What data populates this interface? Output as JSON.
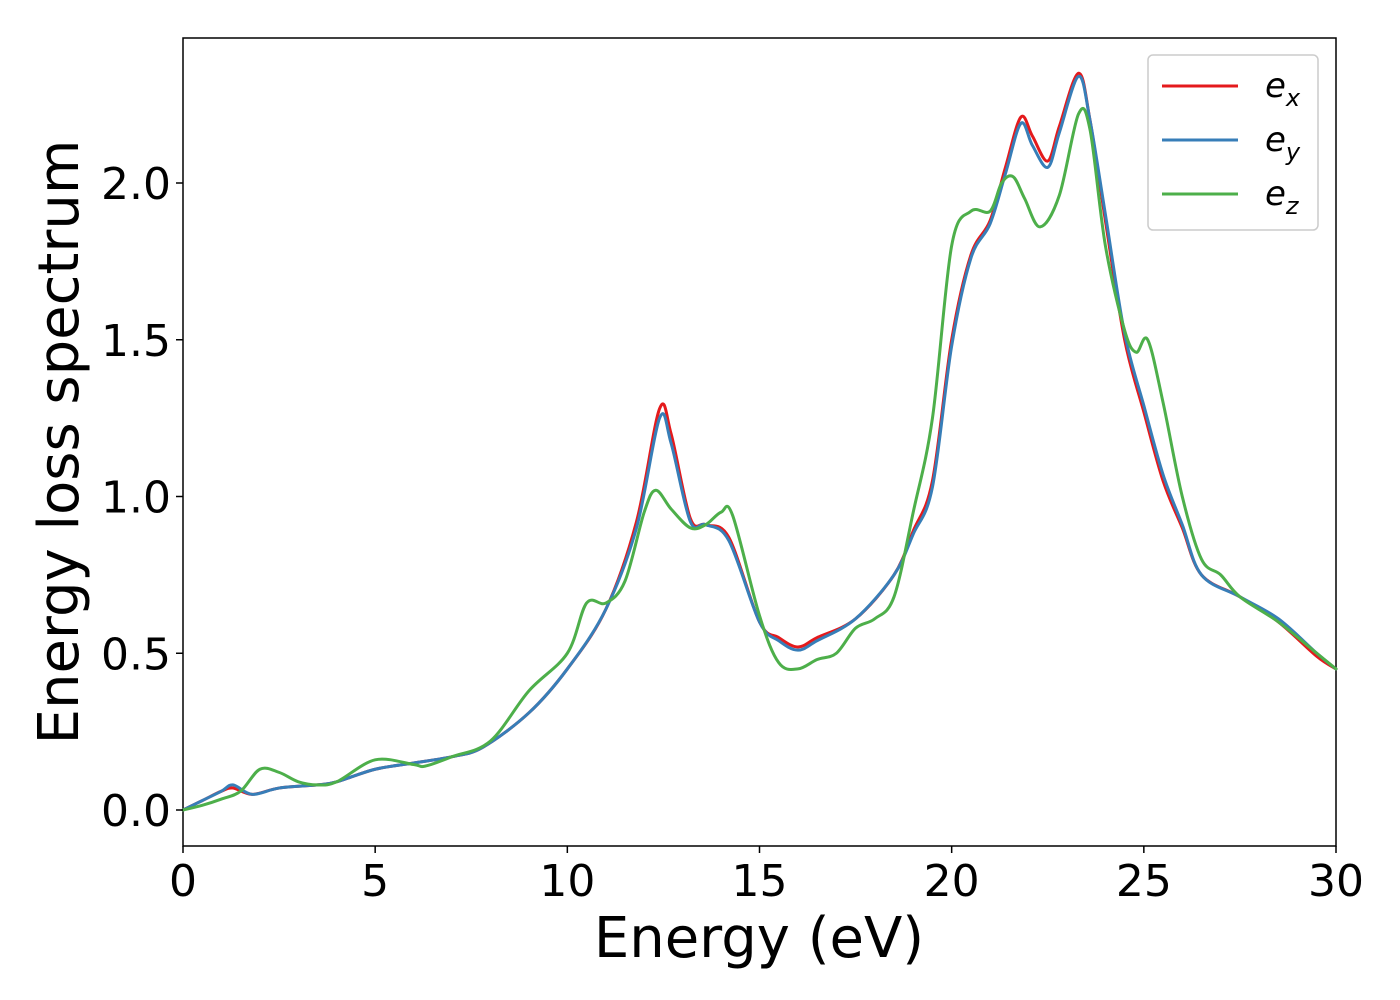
{
  "chart_data": {
    "type": "line",
    "title": "",
    "xlabel": "Energy (eV)",
    "ylabel": "Energy loss spectrum",
    "xlim": [
      0,
      30
    ],
    "ylim": [
      -0.12,
      2.47
    ],
    "xticks": [
      0,
      5,
      10,
      15,
      20,
      25,
      30
    ],
    "xtick_labels": [
      "0",
      "5",
      "10",
      "15",
      "20",
      "25",
      "30"
    ],
    "yticks": [
      0.0,
      0.5,
      1.0,
      1.5,
      2.0
    ],
    "ytick_labels": [
      "0.0",
      "0.5",
      "1.0",
      "1.5",
      "2.0"
    ],
    "grid": false,
    "legend_position": "top-right",
    "series": [
      {
        "name": "e_x",
        "legend_base": "e",
        "legend_sub": "x",
        "color": "#e41a1c",
        "x": [
          0,
          0.5,
          1.0,
          1.3,
          1.8,
          2.5,
          3.5,
          4.0,
          5.0,
          6.0,
          7.0,
          7.8,
          9.0,
          10.0,
          11.0,
          11.8,
          12.4,
          12.7,
          13.2,
          13.6,
          14.2,
          15.0,
          15.5,
          16.0,
          16.5,
          17.5,
          18.5,
          19.0,
          19.5,
          20.0,
          20.5,
          21.0,
          21.4,
          21.8,
          22.1,
          22.5,
          22.8,
          23.3,
          23.6,
          24.0,
          24.5,
          25.0,
          25.5,
          26.0,
          26.5,
          27.5,
          28.5,
          29.5,
          30.0
        ],
        "y": [
          0.0,
          0.03,
          0.06,
          0.07,
          0.05,
          0.07,
          0.08,
          0.09,
          0.13,
          0.15,
          0.17,
          0.2,
          0.31,
          0.45,
          0.64,
          0.92,
          1.28,
          1.2,
          0.93,
          0.91,
          0.87,
          0.6,
          0.55,
          0.52,
          0.55,
          0.61,
          0.75,
          0.89,
          1.05,
          1.5,
          1.77,
          1.88,
          2.05,
          2.21,
          2.15,
          2.07,
          2.18,
          2.35,
          2.2,
          1.88,
          1.5,
          1.27,
          1.05,
          0.9,
          0.75,
          0.68,
          0.6,
          0.49,
          0.45
        ]
      },
      {
        "name": "e_y",
        "legend_base": "e",
        "legend_sub": "y",
        "color": "#377eb8",
        "x": [
          0,
          0.5,
          1.0,
          1.3,
          1.8,
          2.5,
          3.5,
          4.0,
          5.0,
          6.0,
          7.0,
          7.8,
          9.0,
          10.0,
          11.0,
          11.8,
          12.4,
          12.7,
          13.2,
          13.6,
          14.2,
          15.0,
          15.5,
          16.0,
          16.5,
          17.5,
          18.5,
          19.0,
          19.5,
          20.0,
          20.5,
          21.0,
          21.4,
          21.8,
          22.1,
          22.5,
          22.8,
          23.3,
          23.6,
          24.0,
          24.5,
          25.0,
          25.5,
          26.0,
          26.5,
          27.5,
          28.5,
          29.5,
          30.0
        ],
        "y": [
          0.0,
          0.03,
          0.06,
          0.08,
          0.05,
          0.07,
          0.08,
          0.09,
          0.13,
          0.15,
          0.17,
          0.2,
          0.31,
          0.45,
          0.64,
          0.9,
          1.25,
          1.17,
          0.92,
          0.91,
          0.86,
          0.6,
          0.54,
          0.51,
          0.54,
          0.61,
          0.75,
          0.88,
          1.03,
          1.48,
          1.76,
          1.87,
          2.03,
          2.19,
          2.12,
          2.05,
          2.16,
          2.34,
          2.2,
          1.9,
          1.52,
          1.29,
          1.07,
          0.91,
          0.75,
          0.68,
          0.61,
          0.5,
          0.45
        ]
      },
      {
        "name": "e_z",
        "legend_base": "e",
        "legend_sub": "z",
        "color": "#4daf4a",
        "x": [
          0,
          0.5,
          1.0,
          1.5,
          2.0,
          2.5,
          3.0,
          3.5,
          4.0,
          5.0,
          6.0,
          6.3,
          7.0,
          8.0,
          9.0,
          10.0,
          10.5,
          11.0,
          11.5,
          12.0,
          12.3,
          12.7,
          13.2,
          13.6,
          14.0,
          14.3,
          15.0,
          15.5,
          16.0,
          16.5,
          17.0,
          17.5,
          18.0,
          18.5,
          19.0,
          19.5,
          20.0,
          20.5,
          21.0,
          21.3,
          21.6,
          21.9,
          22.3,
          22.8,
          23.3,
          23.6,
          24.0,
          24.5,
          24.8,
          25.1,
          25.5,
          26.0,
          26.5,
          27.0,
          27.5,
          28.5,
          29.5,
          30.0
        ],
        "y": [
          0.0,
          0.015,
          0.035,
          0.06,
          0.13,
          0.12,
          0.09,
          0.08,
          0.09,
          0.16,
          0.145,
          0.14,
          0.17,
          0.22,
          0.38,
          0.5,
          0.66,
          0.66,
          0.73,
          0.95,
          1.02,
          0.96,
          0.9,
          0.91,
          0.95,
          0.94,
          0.62,
          0.47,
          0.45,
          0.48,
          0.5,
          0.58,
          0.61,
          0.68,
          0.95,
          1.25,
          1.8,
          1.91,
          1.91,
          2.0,
          2.02,
          1.95,
          1.86,
          1.96,
          2.22,
          2.17,
          1.8,
          1.53,
          1.46,
          1.5,
          1.3,
          1.0,
          0.8,
          0.75,
          0.68,
          0.6,
          0.5,
          0.45
        ]
      }
    ]
  }
}
